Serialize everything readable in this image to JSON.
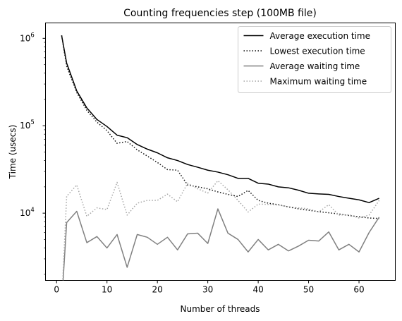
{
  "chart_data": {
    "type": "line",
    "title": "Counting frequencies step (100MB file)",
    "xlabel": "Number of threads",
    "ylabel": "Time (usecs)",
    "yscale": "log",
    "xlim": [
      -2.2,
      67.2
    ],
    "ylim": [
      1700,
      1500000
    ],
    "xticks": [
      0,
      10,
      20,
      30,
      40,
      50,
      60
    ],
    "yticks": [
      {
        "value": 10000,
        "base": "10",
        "exp": "4"
      },
      {
        "value": 100000,
        "base": "10",
        "exp": "5"
      },
      {
        "value": 1000000,
        "base": "10",
        "exp": "6"
      }
    ],
    "legend_position": "top-right",
    "grid": false,
    "series": [
      {
        "name": "Average execution time",
        "color": "#000000",
        "style": "solid",
        "points": [
          [
            1,
            1080000
          ],
          [
            2,
            520000
          ],
          [
            4,
            250000
          ],
          [
            6,
            160000
          ],
          [
            8,
            118000
          ],
          [
            10,
            98000
          ],
          [
            12,
            78000
          ],
          [
            14,
            73000
          ],
          [
            16,
            61000
          ],
          [
            18,
            54000
          ],
          [
            20,
            49000
          ],
          [
            22,
            43000
          ],
          [
            24,
            40000
          ],
          [
            26,
            36000
          ],
          [
            28,
            33500
          ],
          [
            30,
            31000
          ],
          [
            32,
            29500
          ],
          [
            34,
            27500
          ],
          [
            36,
            25000
          ],
          [
            38,
            25000
          ],
          [
            40,
            22000
          ],
          [
            42,
            21500
          ],
          [
            44,
            20000
          ],
          [
            46,
            19500
          ],
          [
            48,
            18300
          ],
          [
            50,
            16900
          ],
          [
            52,
            16600
          ],
          [
            54,
            16400
          ],
          [
            56,
            15500
          ],
          [
            58,
            14800
          ],
          [
            60,
            14200
          ],
          [
            62,
            13200
          ],
          [
            64,
            14800
          ]
        ]
      },
      {
        "name": "Lowest execution time",
        "color": "#111111",
        "style": "dotted",
        "points": [
          [
            1,
            1080000
          ],
          [
            2,
            480000
          ],
          [
            4,
            240000
          ],
          [
            6,
            150000
          ],
          [
            8,
            110000
          ],
          [
            10,
            88000
          ],
          [
            12,
            63000
          ],
          [
            14,
            66000
          ],
          [
            16,
            53000
          ],
          [
            18,
            45000
          ],
          [
            20,
            38000
          ],
          [
            22,
            31500
          ],
          [
            24,
            31000
          ],
          [
            26,
            21000
          ],
          [
            28,
            20000
          ],
          [
            30,
            19000
          ],
          [
            32,
            17500
          ],
          [
            34,
            16400
          ],
          [
            36,
            15500
          ],
          [
            38,
            18200
          ],
          [
            40,
            14000
          ],
          [
            42,
            13000
          ],
          [
            44,
            12500
          ],
          [
            46,
            11800
          ],
          [
            48,
            11200
          ],
          [
            50,
            10800
          ],
          [
            52,
            10400
          ],
          [
            54,
            10100
          ],
          [
            56,
            9800
          ],
          [
            58,
            9400
          ],
          [
            60,
            9100
          ],
          [
            62,
            8800
          ],
          [
            64,
            8700
          ]
        ]
      },
      {
        "name": "Average waiting time",
        "color": "#808080",
        "style": "solid",
        "points": [
          [
            1,
            900
          ],
          [
            2,
            7800
          ],
          [
            4,
            10500
          ],
          [
            6,
            4600
          ],
          [
            8,
            5400
          ],
          [
            10,
            4000
          ],
          [
            12,
            5700
          ],
          [
            14,
            2400
          ],
          [
            16,
            5700
          ],
          [
            18,
            5300
          ],
          [
            20,
            4400
          ],
          [
            22,
            5300
          ],
          [
            24,
            3800
          ],
          [
            26,
            5800
          ],
          [
            28,
            5900
          ],
          [
            30,
            4500
          ],
          [
            32,
            11200
          ],
          [
            34,
            5900
          ],
          [
            36,
            5000
          ],
          [
            38,
            3600
          ],
          [
            40,
            5000
          ],
          [
            42,
            3800
          ],
          [
            44,
            4400
          ],
          [
            46,
            3700
          ],
          [
            48,
            4200
          ],
          [
            50,
            4900
          ],
          [
            52,
            4800
          ],
          [
            54,
            6100
          ],
          [
            56,
            3800
          ],
          [
            58,
            4400
          ],
          [
            60,
            3600
          ],
          [
            62,
            6000
          ],
          [
            64,
            9000
          ]
        ]
      },
      {
        "name": "Maximum waiting time",
        "color": "#a6a6a6",
        "style": "dotted",
        "points": [
          [
            1,
            900
          ],
          [
            2,
            15600
          ],
          [
            4,
            21000
          ],
          [
            6,
            9200
          ],
          [
            8,
            11500
          ],
          [
            10,
            11000
          ],
          [
            12,
            22500
          ],
          [
            14,
            9500
          ],
          [
            16,
            13000
          ],
          [
            18,
            14000
          ],
          [
            20,
            14000
          ],
          [
            22,
            16500
          ],
          [
            24,
            13500
          ],
          [
            26,
            22000
          ],
          [
            28,
            19000
          ],
          [
            30,
            17000
          ],
          [
            32,
            23500
          ],
          [
            34,
            18500
          ],
          [
            36,
            14000
          ],
          [
            38,
            10300
          ],
          [
            40,
            12700
          ],
          [
            42,
            12600
          ],
          [
            44,
            12400
          ],
          [
            46,
            11800
          ],
          [
            48,
            11500
          ],
          [
            50,
            11200
          ],
          [
            52,
            10300
          ],
          [
            54,
            12500
          ],
          [
            56,
            9500
          ],
          [
            58,
            9600
          ],
          [
            60,
            8800
          ],
          [
            62,
            9500
          ],
          [
            64,
            14000
          ]
        ]
      }
    ]
  }
}
